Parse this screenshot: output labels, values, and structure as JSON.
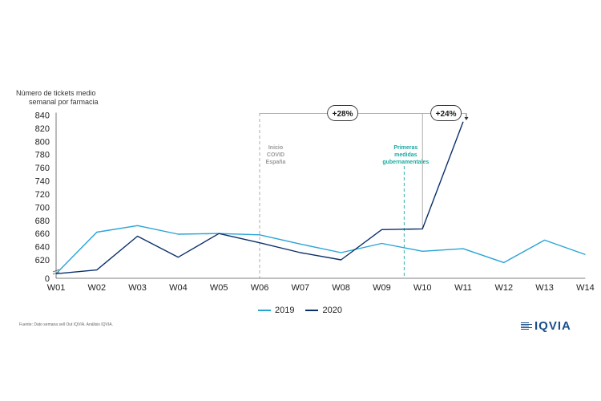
{
  "chart_data": {
    "type": "line",
    "ylabel": "Número de tickets medio semanal por farmacia",
    "categories": [
      "W01",
      "W02",
      "W03",
      "W04",
      "W05",
      "W06",
      "W07",
      "W08",
      "W09",
      "W10",
      "W11",
      "W12",
      "W13",
      "W14"
    ],
    "ylim": [
      600,
      840
    ],
    "yticks": [
      620,
      640,
      660,
      680,
      700,
      720,
      740,
      760,
      780,
      800,
      820,
      840
    ],
    "ytick_zero_label": "0",
    "axis_break": true,
    "grid": false,
    "legend_position": "bottom",
    "series": [
      {
        "name": "2019",
        "color": "#29a3d6",
        "values": [
          605,
          662,
          672,
          659,
          660,
          658,
          644,
          631,
          645,
          633,
          637,
          617,
          650,
          628
        ]
      },
      {
        "name": "2020",
        "color": "#0b2f6b",
        "values": [
          605,
          609,
          656,
          624,
          660,
          646,
          631,
          620,
          666,
          667,
          830,
          null,
          null,
          null
        ]
      }
    ],
    "annotations": {
      "covid_start": {
        "x_index": 6,
        "lines": [
          "Inicio",
          "COVID",
          "España"
        ],
        "color": "#9a9a9a"
      },
      "gov_measures": {
        "x_index": 9.55,
        "lines": [
          "Primeras",
          "medidas",
          "gubernamentales"
        ],
        "color": "#1aa9a0"
      },
      "badge_28": {
        "text": "+28%",
        "from_index": 6,
        "to_index": 10
      },
      "badge_24": {
        "text": "+24%",
        "from_index": 10,
        "to_index": 11
      }
    }
  },
  "legend": {
    "items": [
      {
        "label": "2019",
        "color": "#29a3d6"
      },
      {
        "label": "2020",
        "color": "#0b2f6b"
      }
    ]
  },
  "footer": {
    "source": "Fuente: Dato semana sell Out IQVIA. Análisis IQVIA.",
    "logo": "IQVIA"
  }
}
